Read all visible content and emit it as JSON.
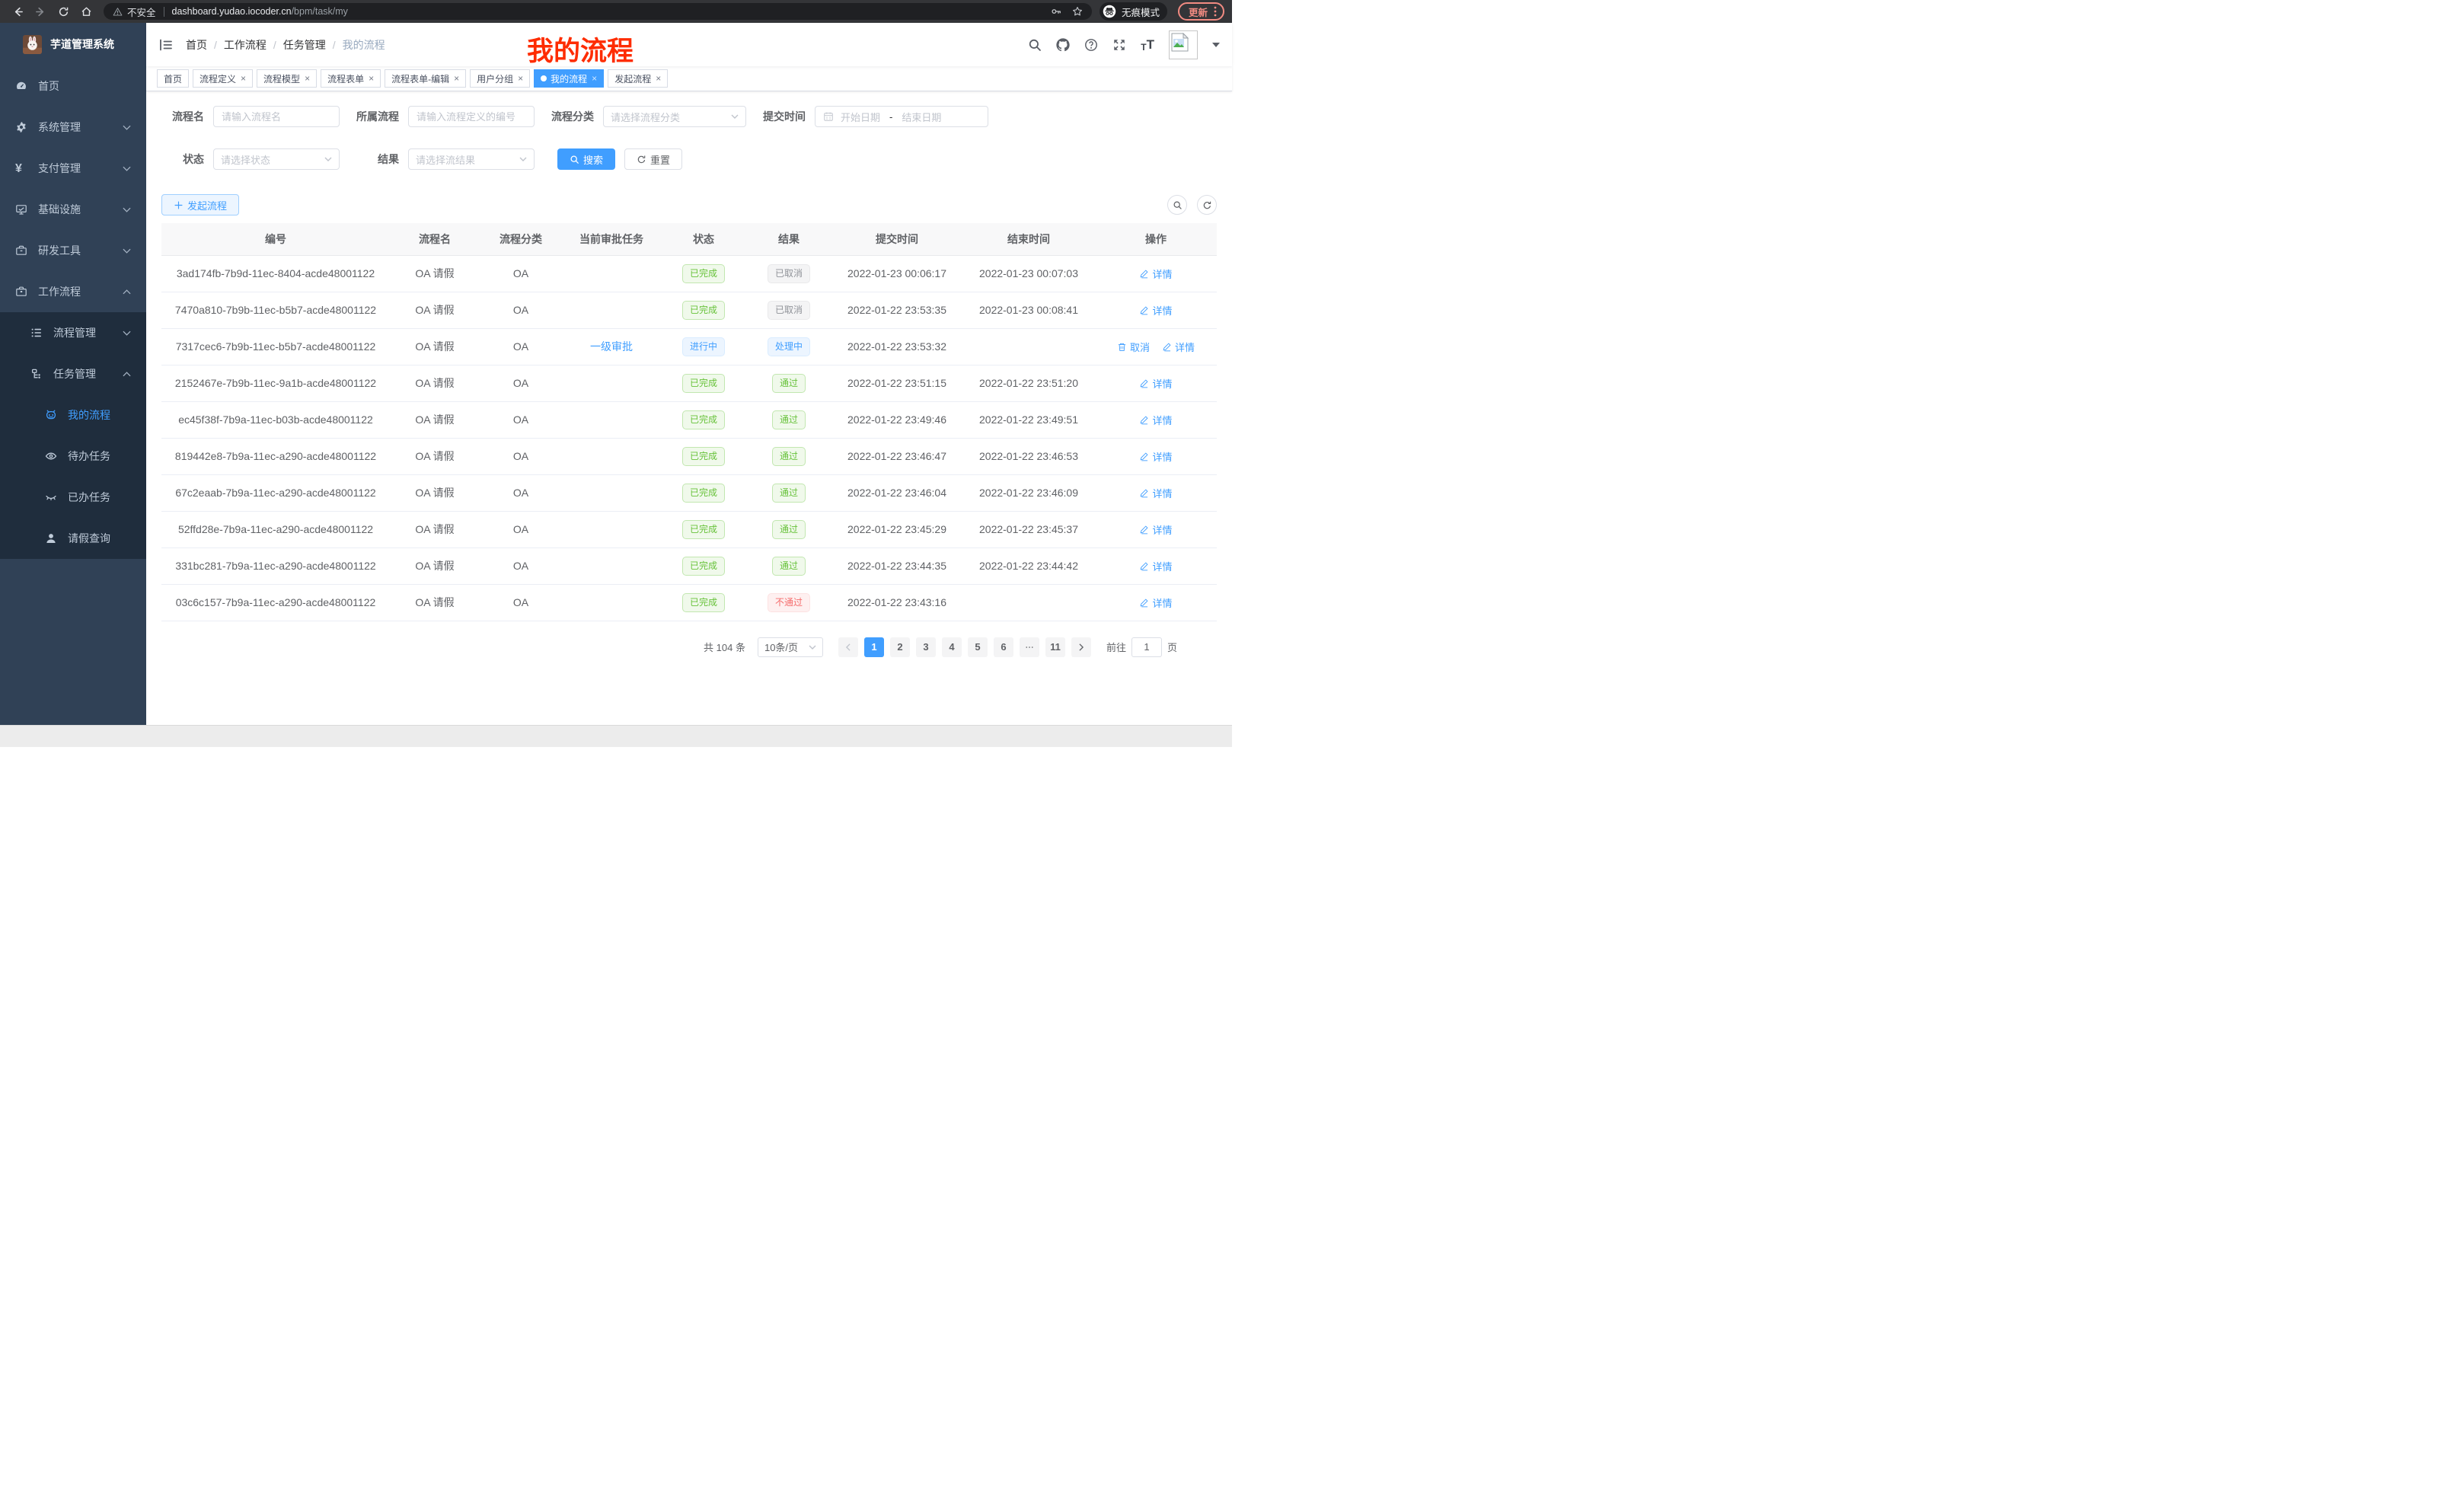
{
  "browser": {
    "security_warning": "不安全",
    "url_host": "dashboard.yudao.iocoder.cn",
    "url_path": "/bpm/task/my",
    "incognito_label": "无痕模式",
    "update_button": "更新"
  },
  "sidebar": {
    "app_title": "芋道管理系统",
    "items": [
      {
        "key": "home",
        "label": "首页",
        "icon": "dashboard-icon",
        "level": 0
      },
      {
        "key": "system",
        "label": "系统管理",
        "icon": "gear-icon",
        "level": 0,
        "arrow": "down"
      },
      {
        "key": "payment",
        "label": "支付管理",
        "icon": "yen-icon",
        "level": 0,
        "arrow": "down"
      },
      {
        "key": "infrastructure",
        "label": "基础设施",
        "icon": "monitor-icon",
        "level": 0,
        "arrow": "down"
      },
      {
        "key": "dev-tools",
        "label": "研发工具",
        "icon": "toolbox-icon",
        "level": 0,
        "arrow": "down"
      },
      {
        "key": "workflow",
        "label": "工作流程",
        "icon": "briefcase-icon",
        "level": 0,
        "arrow": "up"
      },
      {
        "key": "process-mgmt",
        "label": "流程管理",
        "icon": "list-tree-icon",
        "level": 1,
        "arrow": "down"
      },
      {
        "key": "task-mgmt",
        "label": "任务管理",
        "icon": "org-tree-icon",
        "level": 1,
        "arrow": "up"
      },
      {
        "key": "my-process",
        "label": "我的流程",
        "icon": "robot-icon",
        "level": 2,
        "active": true
      },
      {
        "key": "todo-tasks",
        "label": "待办任务",
        "icon": "eye-icon",
        "level": 2
      },
      {
        "key": "done-tasks",
        "label": "已办任务",
        "icon": "eye-closed-icon",
        "level": 2
      },
      {
        "key": "leave-query",
        "label": "请假查询",
        "icon": "user-icon",
        "level": 2
      }
    ]
  },
  "navbar": {
    "breadcrumb": [
      "首页",
      "工作流程",
      "任务管理",
      "我的流程"
    ],
    "annotation": "我的流程",
    "annotation_color": "#fe2c00"
  },
  "tabs": [
    {
      "key": "home",
      "label": "首页",
      "closable": false
    },
    {
      "key": "process-definition",
      "label": "流程定义",
      "closable": true
    },
    {
      "key": "process-model",
      "label": "流程模型",
      "closable": true
    },
    {
      "key": "process-form",
      "label": "流程表单",
      "closable": true
    },
    {
      "key": "process-form-edit",
      "label": "流程表单-编辑",
      "closable": true
    },
    {
      "key": "user-group",
      "label": "用户分组",
      "closable": true
    },
    {
      "key": "my-process",
      "label": "我的流程",
      "closable": true,
      "active": true
    },
    {
      "key": "start-process",
      "label": "发起流程",
      "closable": true
    }
  ],
  "filters": {
    "name_label": "流程名",
    "name_placeholder": "请输入流程名",
    "definition_label": "所属流程",
    "definition_placeholder": "请输入流程定义的编号",
    "category_label": "流程分类",
    "category_placeholder": "请选择流程分类",
    "time_label": "提交时间",
    "start_placeholder": "开始日期",
    "range_separator": "-",
    "end_placeholder": "结束日期",
    "status_label": "状态",
    "status_placeholder": "请选择状态",
    "result_label": "结果",
    "result_placeholder": "请选择流结果",
    "search_button": "搜索",
    "reset_button": "重置"
  },
  "toolbar": {
    "create_button": "发起流程"
  },
  "table": {
    "headers": [
      "编号",
      "流程名",
      "流程分类",
      "当前审批任务",
      "状态",
      "结果",
      "提交时间",
      "结束时间",
      "操作"
    ],
    "rows": [
      {
        "id": "3ad174fb-7b9d-11ec-8404-acde48001122",
        "name": "OA 请假",
        "category": "OA",
        "task": "",
        "status": "已完成",
        "status_type": "success",
        "result": "已取消",
        "result_type": "info",
        "submit_time": "2022-01-23 00:06:17",
        "end_time": "2022-01-23 00:07:03",
        "actions": [
          {
            "label": "详情",
            "icon": "edit-icon"
          }
        ]
      },
      {
        "id": "7470a810-7b9b-11ec-b5b7-acde48001122",
        "name": "OA 请假",
        "category": "OA",
        "task": "",
        "status": "已完成",
        "status_type": "success",
        "result": "已取消",
        "result_type": "info",
        "submit_time": "2022-01-22 23:53:35",
        "end_time": "2022-01-23 00:08:41",
        "actions": [
          {
            "label": "详情",
            "icon": "edit-icon"
          }
        ]
      },
      {
        "id": "7317cec6-7b9b-11ec-b5b7-acde48001122",
        "name": "OA 请假",
        "category": "OA",
        "task": "一级审批",
        "status": "进行中",
        "status_type": "primary",
        "result": "处理中",
        "result_type": "primary",
        "submit_time": "2022-01-22 23:53:32",
        "end_time": "",
        "actions": [
          {
            "label": "取消",
            "icon": "trash-icon"
          },
          {
            "label": "详情",
            "icon": "edit-icon"
          }
        ]
      },
      {
        "id": "2152467e-7b9b-11ec-9a1b-acde48001122",
        "name": "OA 请假",
        "category": "OA",
        "task": "",
        "status": "已完成",
        "status_type": "success",
        "result": "通过",
        "result_type": "success",
        "submit_time": "2022-01-22 23:51:15",
        "end_time": "2022-01-22 23:51:20",
        "actions": [
          {
            "label": "详情",
            "icon": "edit-icon"
          }
        ]
      },
      {
        "id": "ec45f38f-7b9a-11ec-b03b-acde48001122",
        "name": "OA 请假",
        "category": "OA",
        "task": "",
        "status": "已完成",
        "status_type": "success",
        "result": "通过",
        "result_type": "success",
        "submit_time": "2022-01-22 23:49:46",
        "end_time": "2022-01-22 23:49:51",
        "actions": [
          {
            "label": "详情",
            "icon": "edit-icon"
          }
        ]
      },
      {
        "id": "819442e8-7b9a-11ec-a290-acde48001122",
        "name": "OA 请假",
        "category": "OA",
        "task": "",
        "status": "已完成",
        "status_type": "success",
        "result": "通过",
        "result_type": "success",
        "submit_time": "2022-01-22 23:46:47",
        "end_time": "2022-01-22 23:46:53",
        "actions": [
          {
            "label": "详情",
            "icon": "edit-icon"
          }
        ]
      },
      {
        "id": "67c2eaab-7b9a-11ec-a290-acde48001122",
        "name": "OA 请假",
        "category": "OA",
        "task": "",
        "status": "已完成",
        "status_type": "success",
        "result": "通过",
        "result_type": "success",
        "submit_time": "2022-01-22 23:46:04",
        "end_time": "2022-01-22 23:46:09",
        "actions": [
          {
            "label": "详情",
            "icon": "edit-icon"
          }
        ]
      },
      {
        "id": "52ffd28e-7b9a-11ec-a290-acde48001122",
        "name": "OA 请假",
        "category": "OA",
        "task": "",
        "status": "已完成",
        "status_type": "success",
        "result": "通过",
        "result_type": "success",
        "submit_time": "2022-01-22 23:45:29",
        "end_time": "2022-01-22 23:45:37",
        "actions": [
          {
            "label": "详情",
            "icon": "edit-icon"
          }
        ]
      },
      {
        "id": "331bc281-7b9a-11ec-a290-acde48001122",
        "name": "OA 请假",
        "category": "OA",
        "task": "",
        "status": "已完成",
        "status_type": "success",
        "result": "通过",
        "result_type": "success",
        "submit_time": "2022-01-22 23:44:35",
        "end_time": "2022-01-22 23:44:42",
        "actions": [
          {
            "label": "详情",
            "icon": "edit-icon"
          }
        ]
      },
      {
        "id": "03c6c157-7b9a-11ec-a290-acde48001122",
        "name": "OA 请假",
        "category": "OA",
        "task": "",
        "status": "已完成",
        "status_type": "success",
        "result": "不通过",
        "result_type": "danger",
        "submit_time": "2022-01-22 23:43:16",
        "end_time": "",
        "actions": [
          {
            "label": "详情",
            "icon": "edit-icon"
          }
        ]
      }
    ]
  },
  "pagination": {
    "total_text": "共 104 条",
    "page_size": "10条/页",
    "pages": [
      "1",
      "2",
      "3",
      "4",
      "5",
      "6",
      "ellipsis",
      "11"
    ],
    "active_page": "1",
    "goto_label": "前往",
    "goto_value": "1",
    "goto_suffix": "页"
  },
  "colors": {
    "accent": "#409eff",
    "sidebar_bg": "#304156",
    "submenu_bg": "#1f2d3d",
    "success_text": "#67c23a",
    "info_text": "#909399",
    "danger_text": "#f56c6c",
    "update_pill": "#f28b82"
  }
}
